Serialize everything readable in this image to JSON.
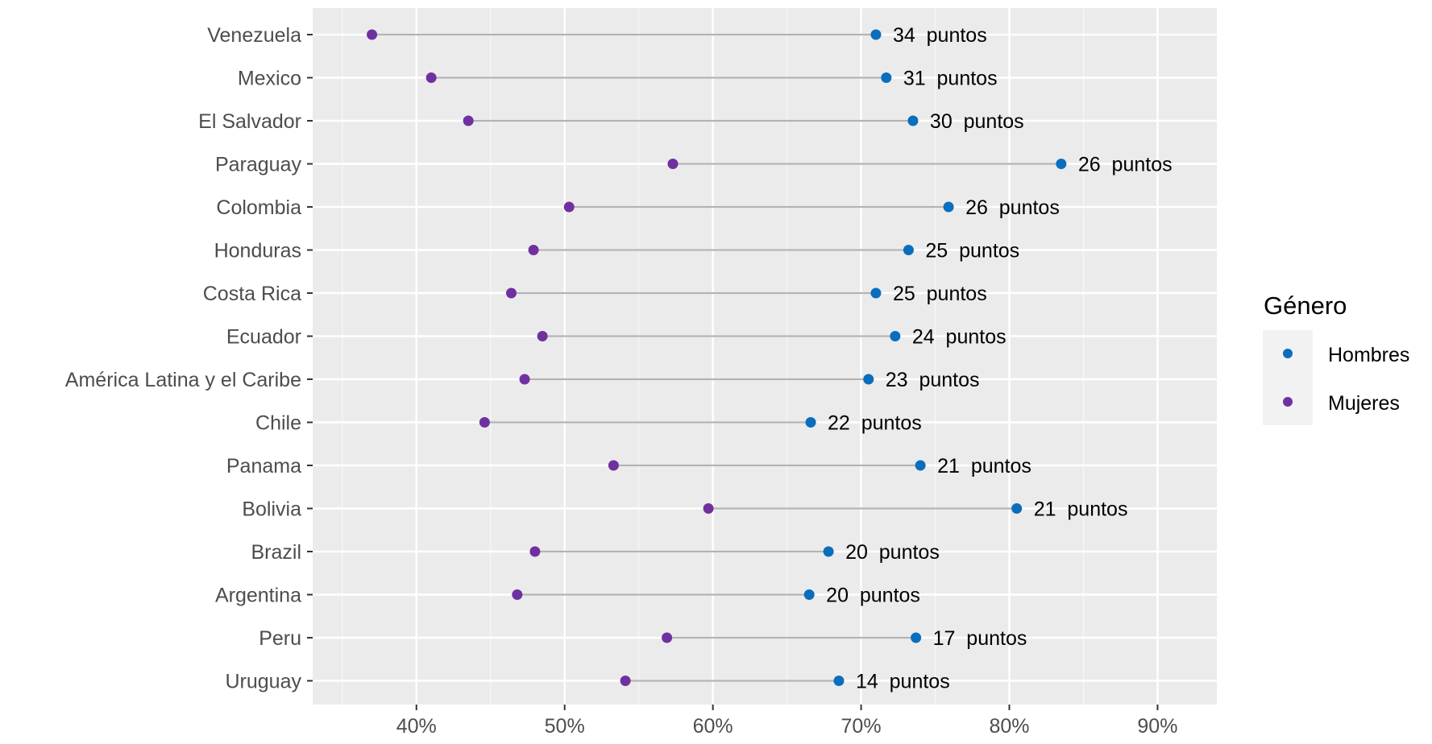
{
  "chart_data": {
    "type": "scatter",
    "subtype": "dumbbell",
    "title": "",
    "xlabel": "",
    "ylabel": "",
    "xlim": [
      33,
      94
    ],
    "x_ticks": [
      {
        "value": 40,
        "label": "40%"
      },
      {
        "value": 50,
        "label": "50%"
      },
      {
        "value": 60,
        "label": "60%"
      },
      {
        "value": 70,
        "label": "70%"
      },
      {
        "value": 80,
        "label": "80%"
      },
      {
        "value": 90,
        "label": "90%"
      }
    ],
    "grid": true,
    "legend": {
      "title": "Género",
      "position": "right",
      "entries": [
        "Hombres",
        "Mujeres"
      ]
    },
    "series": [
      {
        "name": "Hombres",
        "color": "#0a6ebd"
      },
      {
        "name": "Mujeres",
        "color": "#7030a0"
      }
    ],
    "connector_color": "#b3b3b3",
    "categories": [
      "Venezuela",
      "Mexico",
      "El Salvador",
      "Paraguay",
      "Colombia",
      "Honduras",
      "Costa Rica",
      "Ecuador",
      "América Latina y el Caribe",
      "Chile",
      "Panama",
      "Bolivia",
      "Brazil",
      "Argentina",
      "Peru",
      "Uruguay"
    ],
    "rows": [
      {
        "category": "Venezuela",
        "hombres": 71.0,
        "mujeres": 37.0,
        "gap_label": "34  puntos"
      },
      {
        "category": "Mexico",
        "hombres": 71.7,
        "mujeres": 41.0,
        "gap_label": "31  puntos"
      },
      {
        "category": "El Salvador",
        "hombres": 73.5,
        "mujeres": 43.5,
        "gap_label": "30  puntos"
      },
      {
        "category": "Paraguay",
        "hombres": 83.5,
        "mujeres": 57.3,
        "gap_label": "26  puntos"
      },
      {
        "category": "Colombia",
        "hombres": 75.9,
        "mujeres": 50.3,
        "gap_label": "26  puntos"
      },
      {
        "category": "Honduras",
        "hombres": 73.2,
        "mujeres": 47.9,
        "gap_label": "25  puntos"
      },
      {
        "category": "Costa Rica",
        "hombres": 71.0,
        "mujeres": 46.4,
        "gap_label": "25  puntos"
      },
      {
        "category": "Ecuador",
        "hombres": 72.3,
        "mujeres": 48.5,
        "gap_label": "24  puntos"
      },
      {
        "category": "América Latina y el Caribe",
        "hombres": 70.5,
        "mujeres": 47.3,
        "gap_label": "23  puntos"
      },
      {
        "category": "Chile",
        "hombres": 66.6,
        "mujeres": 44.6,
        "gap_label": "22  puntos"
      },
      {
        "category": "Panama",
        "hombres": 74.0,
        "mujeres": 53.3,
        "gap_label": "21  puntos"
      },
      {
        "category": "Bolivia",
        "hombres": 80.5,
        "mujeres": 59.7,
        "gap_label": "21  puntos"
      },
      {
        "category": "Brazil",
        "hombres": 67.8,
        "mujeres": 48.0,
        "gap_label": "20  puntos"
      },
      {
        "category": "Argentina",
        "hombres": 66.5,
        "mujeres": 46.8,
        "gap_label": "20  puntos"
      },
      {
        "category": "Peru",
        "hombres": 73.7,
        "mujeres": 56.9,
        "gap_label": "17  puntos"
      },
      {
        "category": "Uruguay",
        "hombres": 68.5,
        "mujeres": 54.1,
        "gap_label": "14  puntos"
      }
    ]
  }
}
